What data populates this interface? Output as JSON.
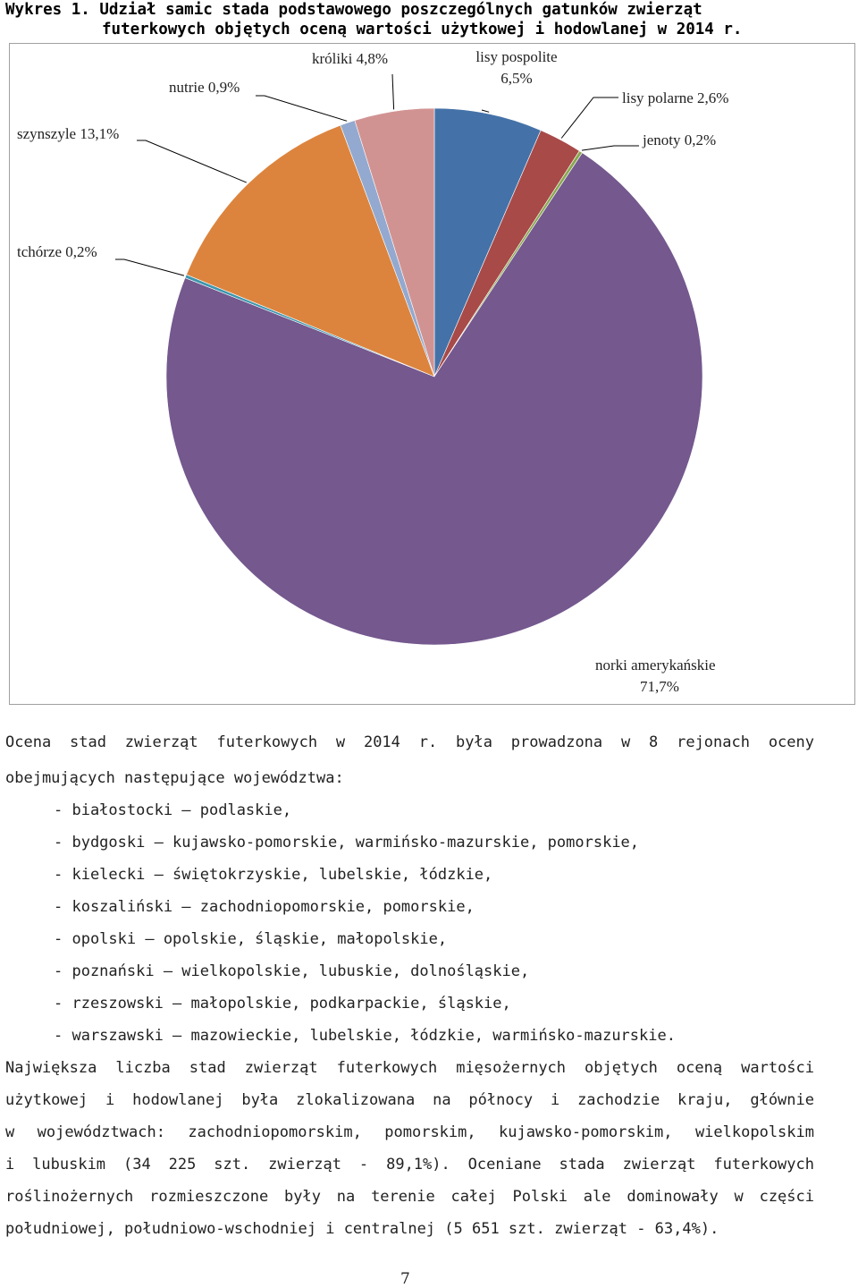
{
  "caption": {
    "line1": "Wykres 1. Udział samic stada podstawowego poszczególnych gatunków zwierząt",
    "line2": "futerkowych objętych oceną wartości użytkowej i hodowlanej w 2014 r."
  },
  "chart_data": {
    "type": "pie",
    "start_angle_deg": 0,
    "direction": "clockwise",
    "slices": [
      {
        "name": "lisy pospolite",
        "value": 6.5,
        "label": "lisy pospolite\n6,5%",
        "color": "#4472a8"
      },
      {
        "name": "lisy polarne",
        "value": 2.6,
        "label": "lisy polarne 2,6%",
        "color": "#a84a48"
      },
      {
        "name": "jenoty",
        "value": 0.2,
        "label": "jenoty 0,2%",
        "color": "#88a84c"
      },
      {
        "name": "norki amerykańskie",
        "value": 71.7,
        "label": "norki amerykańskie\n71,7%",
        "color": "#74588e"
      },
      {
        "name": "tchórze",
        "value": 0.2,
        "label": "tchórze 0,2%",
        "color": "#3d96ad"
      },
      {
        "name": "szynszyle",
        "value": 13.1,
        "label": "szynszyle 13,1%",
        "color": "#dc843e"
      },
      {
        "name": "nutrie",
        "value": 0.9,
        "label": "nutrie 0,9%",
        "color": "#93a9cf"
      },
      {
        "name": "króliki",
        "value": 4.8,
        "label": "króliki 4,8%",
        "color": "#d19392"
      }
    ]
  },
  "text": {
    "p1_line1": "Ocena stad zwierząt futerkowych w 2014 r. była prowadzona w 8 rejonach oceny",
    "p1_line2": "obejmujących następujące województwa:",
    "list": [
      "- białostocki – podlaskie,",
      "- bydgoski – kujawsko-pomorskie, warmińsko-mazurskie, pomorskie,",
      "- kielecki – świętokrzyskie, lubelskie, łódzkie,",
      "- koszaliński – zachodniopomorskie, pomorskie,",
      "- opolski – opolskie, śląskie, małopolskie,",
      "- poznański – wielkopolskie, lubuskie, dolnośląskie,",
      "- rzeszowski – małopolskie, podkarpackie, śląskie,",
      "- warszawski – mazowieckie, lubelskie, łódzkie, warmińsko-mazurskie."
    ],
    "p2": [
      "Największa liczba stad zwierząt futerkowych mięsożernych objętych oceną wartości",
      "użytkowej i hodowlanej była zlokalizowana na północy i zachodzie kraju, głównie",
      "w województwach: zachodniopomorskim, pomorskim, kujawsko-pomorskim, wielkopolskim",
      "i lubuskim (34 225 szt. zwierząt - 89,1%). Oceniane stada zwierząt futerkowych",
      "roślinożernych rozmieszczone były na terenie całej Polski ale dominowały w części",
      "południowej, południowo-wschodniej i centralnej (5 651 szt. zwierząt - 63,4%)."
    ]
  },
  "page_number": "7"
}
